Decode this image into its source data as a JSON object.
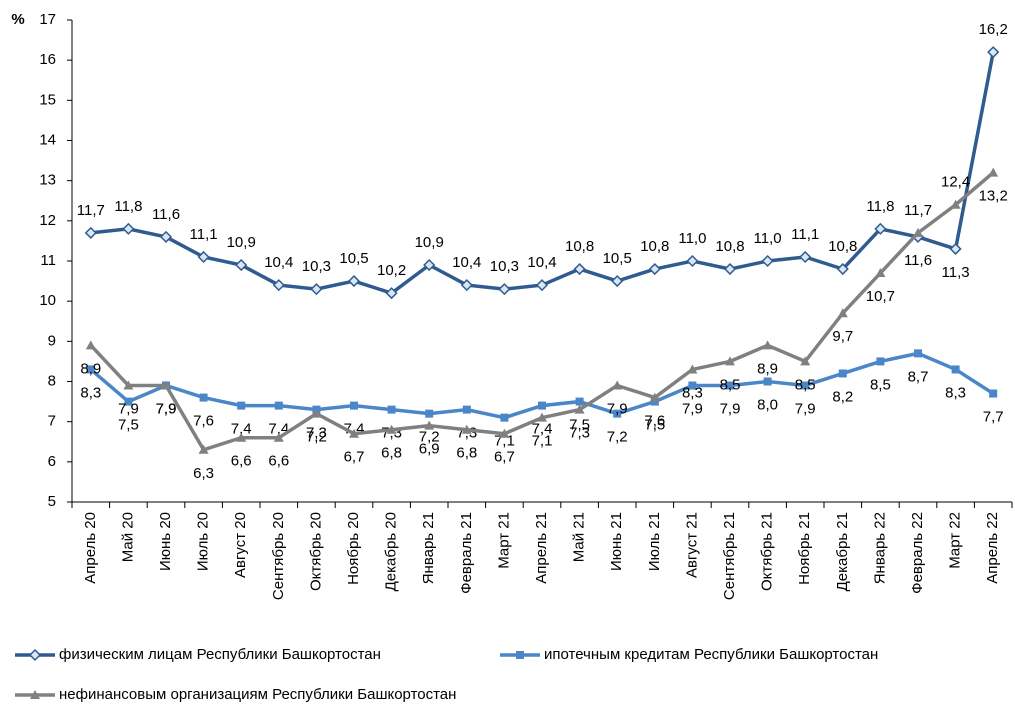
{
  "chart_data": {
    "type": "line",
    "y_label": "%",
    "categories": [
      "Апрель 20",
      "Май 20",
      "Июнь 20",
      "Июль 20",
      "Август 20",
      "Сентябрь 20",
      "Октябрь 20",
      "Ноябрь 20",
      "Декабрь 20",
      "Январь 21",
      "Февраль 21",
      "Март 21",
      "Апрель 21",
      "Май 21",
      "Июнь 21",
      "Июль 21",
      "Август 21",
      "Сентябрь 21",
      "Октябрь 21",
      "Ноябрь 21",
      "Декабрь 21",
      "Январь 22",
      "Февраль 22",
      "Март 22",
      "Апрель 22"
    ],
    "series": [
      {
        "name": "физическим лицам Республики Башкортостан",
        "color": "#2f5b8f",
        "marker": "diamond",
        "values": [
          11.7,
          11.8,
          11.6,
          11.1,
          10.9,
          10.4,
          10.3,
          10.5,
          10.2,
          10.9,
          10.4,
          10.3,
          10.4,
          10.8,
          10.5,
          10.8,
          11.0,
          10.8,
          11.0,
          11.1,
          10.8,
          11.8,
          11.6,
          11.3,
          16.2
        ],
        "value_labels": [
          "11,7",
          "11,8",
          "11,6",
          "11,1",
          "10,9",
          "10,4",
          "10,3",
          "10,5",
          "10,2",
          "10,9",
          "10,4",
          "10,3",
          "10,4",
          "10,8",
          "10,5",
          "10,8",
          "11,0",
          "10,8",
          "11,0",
          "11,1",
          "10,8",
          "11,8",
          "11,6",
          "11,3",
          "16,2"
        ]
      },
      {
        "name": "ипотечным кредитам Республики Башкортостан",
        "color": "#4a86c8",
        "marker": "square",
        "values": [
          8.3,
          7.5,
          7.9,
          7.6,
          7.4,
          7.4,
          7.3,
          7.4,
          7.3,
          7.2,
          7.3,
          7.1,
          7.4,
          7.5,
          7.2,
          7.5,
          7.9,
          7.9,
          8.0,
          7.9,
          8.2,
          8.5,
          8.7,
          8.3,
          7.7
        ],
        "value_labels": [
          "8,3",
          "7,5",
          "7,9",
          "7,6",
          "7,4",
          "7,4",
          "7,3",
          "7,4",
          "7,3",
          "7,2",
          "7,3",
          "7,1",
          "7,4",
          "7,5",
          "7,2",
          "7,5",
          "7,9",
          "7,9",
          "8,0",
          "7,9",
          "8,2",
          "8,5",
          "8,7",
          "8,3",
          "7,7"
        ]
      },
      {
        "name": "нефинансовым организациям Республики Башкортостан",
        "color": "#808080",
        "marker": "triangle",
        "values": [
          8.9,
          7.9,
          7.9,
          6.3,
          6.6,
          6.6,
          7.2,
          6.7,
          6.8,
          6.9,
          6.8,
          6.7,
          7.1,
          7.3,
          7.9,
          7.6,
          8.3,
          8.5,
          8.9,
          8.5,
          9.7,
          10.7,
          11.7,
          12.4,
          13.2
        ],
        "value_labels": [
          "8,9",
          "7,9",
          "7,9",
          "6,3",
          "6,6",
          "6,6",
          "7,2",
          "6,7",
          "6,8",
          "6,9",
          "6,8",
          "6,7",
          "7,1",
          "7,3",
          "7,9",
          "7,6",
          "8,3",
          "8,5",
          "8,9",
          "8,5",
          "9,7",
          "10,7",
          "11,7",
          "12,4",
          "13,2"
        ]
      }
    ],
    "ylim": [
      5,
      17
    ],
    "yticks": [
      5,
      6,
      7,
      8,
      9,
      10,
      11,
      12,
      13,
      14,
      15,
      16,
      17
    ],
    "grid": false
  }
}
